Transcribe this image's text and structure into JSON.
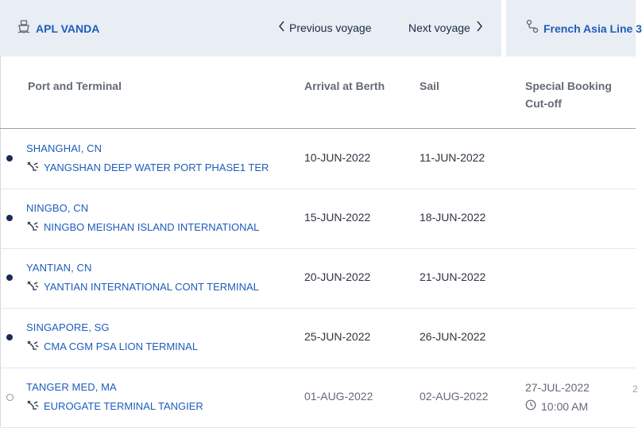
{
  "header": {
    "vessel_name": "APL VANDA",
    "prev_label": "Previous voyage",
    "next_label": "Next voyage",
    "service_name": "French Asia Line 3"
  },
  "table": {
    "columns": {
      "port": "Port and Terminal",
      "arrival": "Arrival at Berth",
      "sail": "Sail",
      "cutoff": "Special Booking Cut-off"
    },
    "rows": [
      {
        "city": "SHANGHAI, CN",
        "terminal": "YANGSHAN DEEP WATER PORT PHASE1 TER",
        "arrival": "10-JUN-2022",
        "sail": "11-JUN-2022",
        "status": "visited"
      },
      {
        "city": "NINGBO, CN",
        "terminal": "NINGBO MEISHAN ISLAND INTERNATIONAL",
        "arrival": "15-JUN-2022",
        "sail": "18-JUN-2022",
        "status": "visited"
      },
      {
        "city": "YANTIAN, CN",
        "terminal": "YANTIAN INTERNATIONAL CONT TERMINAL",
        "arrival": "20-JUN-2022",
        "sail": "21-JUN-2022",
        "status": "visited"
      },
      {
        "city": "SINGAPORE, SG",
        "terminal": "CMA CGM PSA LION TERMINAL",
        "arrival": "25-JUN-2022",
        "sail": "26-JUN-2022",
        "status": "visited"
      },
      {
        "city": "TANGER MED, MA",
        "terminal": "EUROGATE TERMINAL TANGIER",
        "arrival": "01-AUG-2022",
        "sail": "02-AUG-2022",
        "status": "upcoming",
        "cutoff_date": "27-JUL-2022",
        "cutoff_time": "10:00 AM",
        "edge_mark": "2"
      }
    ]
  },
  "colors": {
    "link": "#1f5dbb",
    "header_bg": "#e9edf4",
    "dot": "#1b2a59"
  },
  "icons": [
    "ship-icon",
    "chevron-left-icon",
    "chevron-right-icon",
    "route-icon",
    "terminal-crane-icon",
    "clock-icon"
  ]
}
